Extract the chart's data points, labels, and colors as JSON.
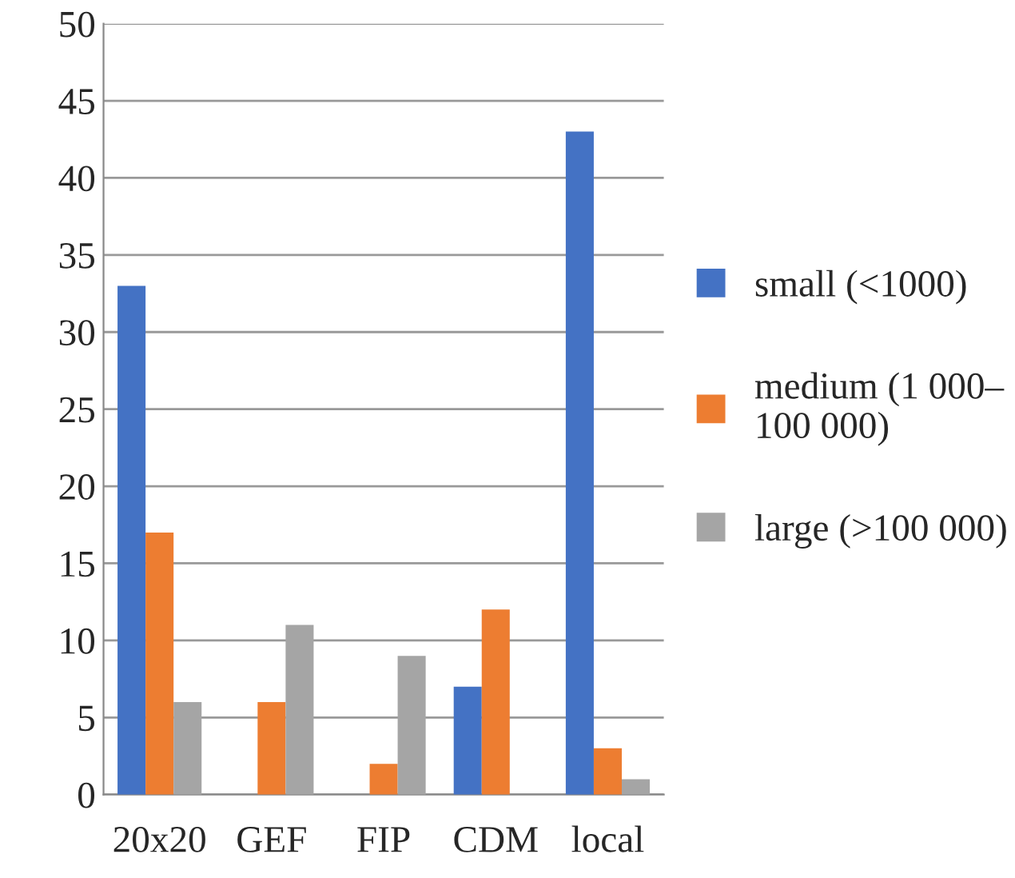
{
  "chart_data": {
    "type": "bar",
    "categories": [
      "20x20",
      "GEF",
      "FIP",
      "CDM",
      "local"
    ],
    "series": [
      {
        "name": "small (<1000)",
        "color": "#4472c4",
        "values": [
          33,
          0,
          0,
          7,
          43
        ]
      },
      {
        "name": "medium (1 000–\n100 000)",
        "color": "#ed7d31",
        "values": [
          17,
          6,
          2,
          12,
          3
        ]
      },
      {
        "name": "large (>100 000)",
        "color": "#a5a5a5",
        "values": [
          6,
          11,
          9,
          0,
          1
        ]
      }
    ],
    "ylim": [
      0,
      50
    ],
    "yticks": [
      0,
      5,
      10,
      15,
      20,
      25,
      30,
      35,
      40,
      45,
      50
    ],
    "grid": "y",
    "legend": "right"
  }
}
